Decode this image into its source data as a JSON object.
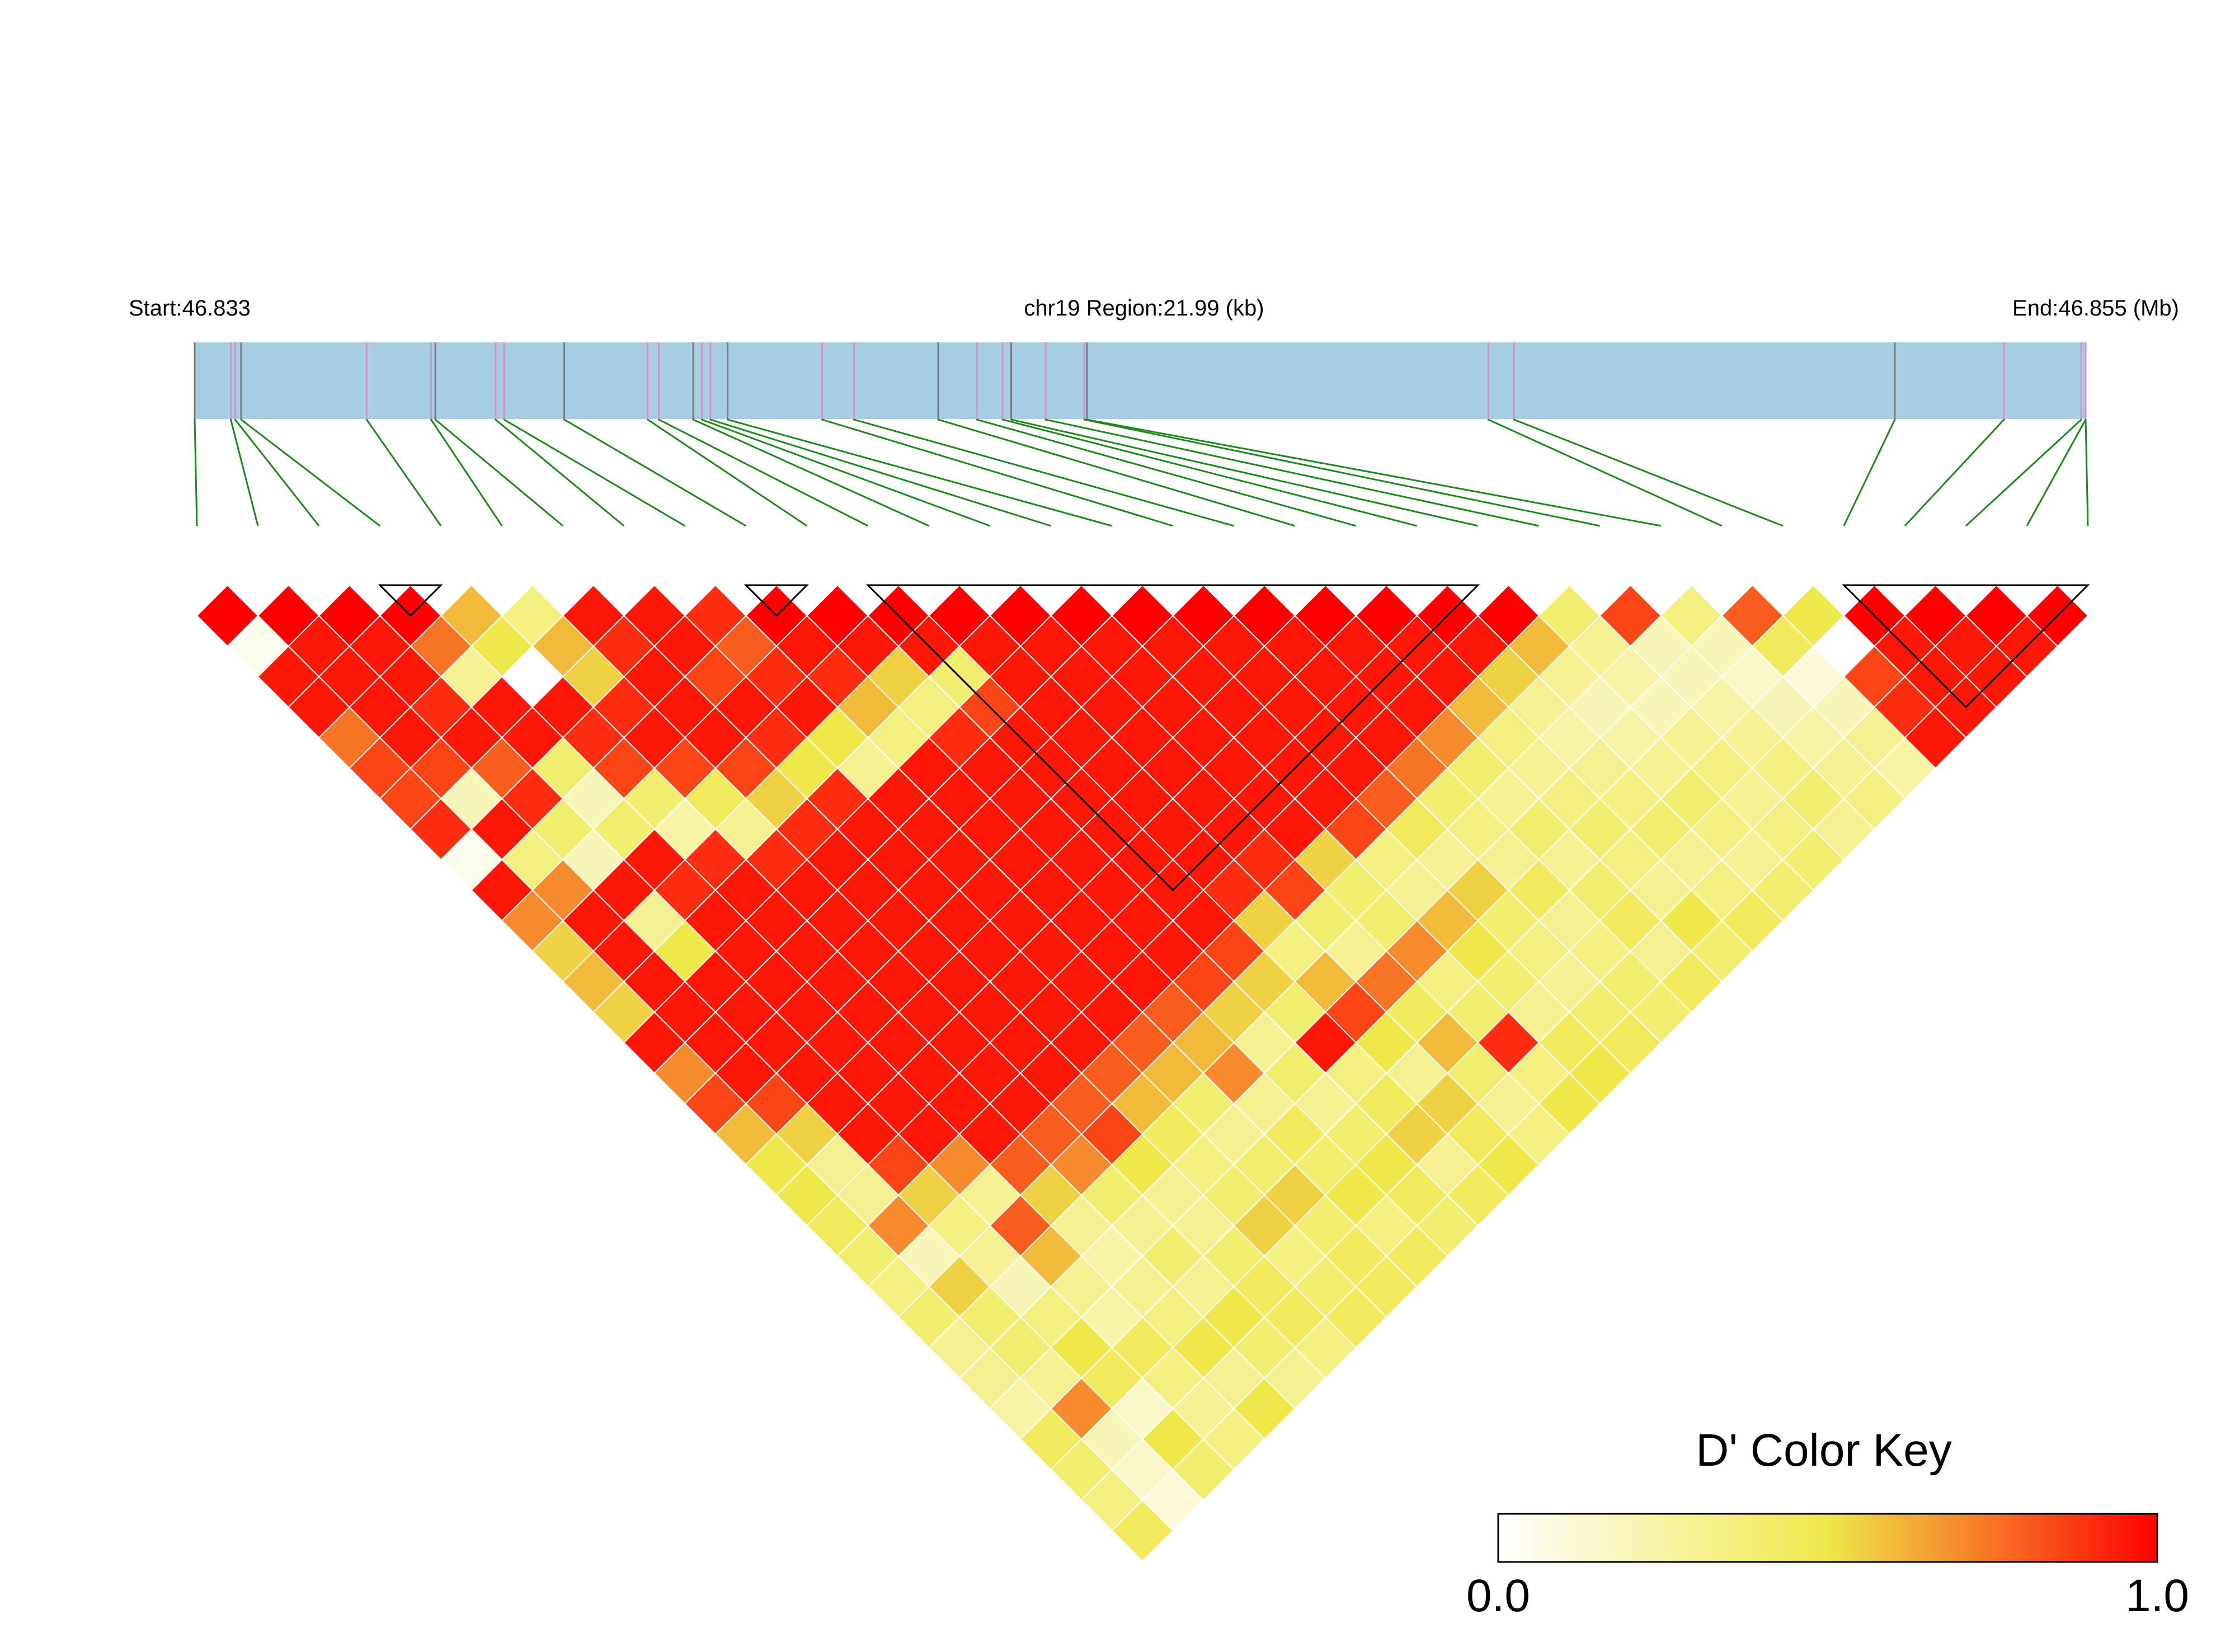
{
  "header": {
    "start_label": "Start:46.833",
    "region_label": "chr19 Region:21.99 (kb)",
    "end_label": "End:46.855 (Mb)"
  },
  "colors": {
    "region_bar": "#a6cde1",
    "snp_tick_gray": "#7a7a7a",
    "snp_tick_pink": "#d98ec8",
    "connector": "#1b8a1b",
    "block_outline": "#000000",
    "cell_border": "#ffffff",
    "scale_low": "#ffffff",
    "scale_mid": "#eee84a",
    "scale_high": "#ff0000"
  },
  "color_key": {
    "title": "D' Color Key",
    "min_label": "0.0",
    "max_label": "1.0"
  },
  "chart_data": {
    "type": "heatmap",
    "description_key": "pairwise D' between SNPs; pair (i,j) with i<j",
    "n_snps": 32,
    "region_start_mb": 46.833,
    "region_end_mb": 46.855,
    "snp_positions_mb": [
      46.833,
      46.83342,
      46.83347,
      46.83354,
      46.835,
      46.83575,
      46.8358,
      46.8365,
      46.8366,
      46.8373,
      46.83827,
      46.8384,
      46.8388,
      46.8389,
      46.839,
      46.8392,
      46.8403,
      46.84067,
      46.84165,
      46.8421,
      46.8424,
      46.8425,
      46.8429,
      46.84335,
      46.84338,
      46.84805,
      46.84835,
      46.85278,
      46.85405,
      46.85495,
      46.855,
      46.855
    ],
    "dprime_range": [
      0.0,
      1.0
    ],
    "ld_blocks": [
      [
        3,
        4
      ],
      [
        9,
        10
      ],
      [
        11,
        21
      ],
      [
        27,
        31
      ]
    ],
    "dprime_rows": [
      [
        1.0,
        0.05,
        0.95,
        0.95,
        0.75,
        0.85,
        0.85,
        0.9,
        0.05,
        0.95,
        0.7,
        0.55,
        0.6,
        0.55,
        0.95,
        0.7,
        0.85,
        0.6,
        0.5,
        0.5,
        0.45,
        0.4,
        0.35,
        0.4,
        0.3,
        0.3,
        0.25,
        0.45,
        0.4,
        0.35,
        0.45
      ],
      [
        1.0,
        0.95,
        0.95,
        0.95,
        0.95,
        0.85,
        0.2,
        0.95,
        0.35,
        0.7,
        0.95,
        0.95,
        0.95,
        0.95,
        0.95,
        0.95,
        0.85,
        0.55,
        0.3,
        0.3,
        0.7,
        0.2,
        0.55,
        0.4,
        0.4,
        0.3,
        0.7,
        0.2,
        0.15,
        0.1
      ],
      [
        1.0,
        0.95,
        0.95,
        0.9,
        0.95,
        0.8,
        0.9,
        0.4,
        0.2,
        0.95,
        0.3,
        0.5,
        0.95,
        0.95,
        0.95,
        0.95,
        0.95,
        0.95,
        0.85,
        0.55,
        0.35,
        0.3,
        0.2,
        0.35,
        0.5,
        0.45,
        0.15,
        0.5,
        0.4
      ],
      [
        1.0,
        0.75,
        0.3,
        0.95,
        0.95,
        0.4,
        0.2,
        0.4,
        0.95,
        0.9,
        0.95,
        0.95,
        0.95,
        0.95,
        0.95,
        0.95,
        0.95,
        0.95,
        0.7,
        0.3,
        0.8,
        0.6,
        0.3,
        0.25,
        0.45,
        0.35,
        0.3,
        0.35
      ],
      [
        0.6,
        0.5,
        0.0,
        0.95,
        0.9,
        0.85,
        0.4,
        0.25,
        0.9,
        0.95,
        0.95,
        0.95,
        0.95,
        0.95,
        0.95,
        0.95,
        0.95,
        0.95,
        0.8,
        0.55,
        0.3,
        0.25,
        0.3,
        0.35,
        0.5,
        0.3,
        0.5
      ],
      [
        0.35,
        0.6,
        0.55,
        0.9,
        0.95,
        0.85,
        0.45,
        0.3,
        0.9,
        0.95,
        0.95,
        0.95,
        0.95,
        0.95,
        0.95,
        0.95,
        0.95,
        0.8,
        0.7,
        0.4,
        0.3,
        0.4,
        0.3,
        0.5,
        0.4,
        0.3
      ],
      [
        0.95,
        0.9,
        0.95,
        0.95,
        0.95,
        0.85,
        0.55,
        0.9,
        0.95,
        0.95,
        0.95,
        0.95,
        0.95,
        0.95,
        0.95,
        0.95,
        0.8,
        0.85,
        0.5,
        0.3,
        0.3,
        0.4,
        0.45,
        0.45,
        0.35
      ],
      [
        0.95,
        0.95,
        0.85,
        0.95,
        0.9,
        0.5,
        0.9,
        0.95,
        0.95,
        0.95,
        0.95,
        0.95,
        0.95,
        0.95,
        0.95,
        0.8,
        0.6,
        0.45,
        0.35,
        0.4,
        0.55,
        0.35,
        0.4,
        0.45
      ],
      [
        0.9,
        0.8,
        0.9,
        0.95,
        0.5,
        0.3,
        0.95,
        0.95,
        0.95,
        0.95,
        0.95,
        0.95,
        0.95,
        0.95,
        0.8,
        0.6,
        0.4,
        0.3,
        0.4,
        0.55,
        0.4,
        0.45,
        0.45
      ],
      [
        1.0,
        0.95,
        0.9,
        0.6,
        0.35,
        0.95,
        0.95,
        0.95,
        0.95,
        0.95,
        0.95,
        0.95,
        0.95,
        0.8,
        0.6,
        0.7,
        0.3,
        0.45,
        0.4,
        0.5,
        0.35,
        0.45
      ],
      [
        1.0,
        0.95,
        0.55,
        0.35,
        0.9,
        0.95,
        0.95,
        0.95,
        0.95,
        0.95,
        0.95,
        0.95,
        0.85,
        0.55,
        0.3,
        0.4,
        0.3,
        0.4,
        0.5,
        0.45,
        0.4
      ],
      [
        1.0,
        0.95,
        0.4,
        0.85,
        0.95,
        0.95,
        0.95,
        0.95,
        0.95,
        0.95,
        0.95,
        0.85,
        0.55,
        0.4,
        0.95,
        0.35,
        0.45,
        0.55,
        0.3,
        0.45
      ],
      [
        1.0,
        0.95,
        0.95,
        0.95,
        0.95,
        0.95,
        0.95,
        0.95,
        0.95,
        0.9,
        0.55,
        0.35,
        0.6,
        0.85,
        0.5,
        0.3,
        0.55,
        0.45,
        0.5
      ],
      [
        1.0,
        0.95,
        0.95,
        0.95,
        0.95,
        0.95,
        0.95,
        0.95,
        0.9,
        0.85,
        0.4,
        0.3,
        0.75,
        0.45,
        0.6,
        0.4,
        0.3,
        0.35
      ],
      [
        1.0,
        0.95,
        0.95,
        0.95,
        0.95,
        0.95,
        0.95,
        0.95,
        0.55,
        0.4,
        0.4,
        0.7,
        0.35,
        0.4,
        0.9,
        0.35,
        0.5
      ],
      [
        1.0,
        0.95,
        0.95,
        0.95,
        0.95,
        0.95,
        0.95,
        0.85,
        0.35,
        0.3,
        0.6,
        0.5,
        0.4,
        0.3,
        0.45,
        0.5
      ],
      [
        1.0,
        0.95,
        0.95,
        0.95,
        0.95,
        0.95,
        0.8,
        0.45,
        0.3,
        0.55,
        0.4,
        0.35,
        0.3,
        0.4,
        0.45
      ],
      [
        1.0,
        0.95,
        0.95,
        0.95,
        0.95,
        0.75,
        0.4,
        0.35,
        0.3,
        0.45,
        0.3,
        0.35,
        0.4,
        0.4
      ],
      [
        1.0,
        0.95,
        0.95,
        0.95,
        0.7,
        0.4,
        0.3,
        0.4,
        0.3,
        0.4,
        0.45,
        0.3,
        0.45
      ],
      [
        1.0,
        0.95,
        0.95,
        0.6,
        0.35,
        0.3,
        0.35,
        0.4,
        0.35,
        0.3,
        0.5,
        0.4
      ],
      [
        1.0,
        0.95,
        0.55,
        0.3,
        0.25,
        0.3,
        0.35,
        0.4,
        0.3,
        0.35,
        0.45
      ],
      [
        1.0,
        0.6,
        0.3,
        0.2,
        0.25,
        0.3,
        0.4,
        0.35,
        0.3,
        0.4
      ],
      [
        0.4,
        0.3,
        0.25,
        0.2,
        0.3,
        0.35,
        0.3,
        0.35,
        0.4
      ],
      [
        0.85,
        0.2,
        0.2,
        0.25,
        0.3,
        0.35,
        0.4,
        0.3
      ],
      [
        0.35,
        0.2,
        0.15,
        0.2,
        0.25,
        0.3,
        0.35
      ],
      [
        0.8,
        0.45,
        0.1,
        0.2,
        0.3,
        0.25
      ],
      [
        0.5,
        0.0,
        0.85,
        0.9,
        0.95
      ],
      [
        1.0,
        0.95,
        0.95,
        0.95
      ],
      [
        1.0,
        0.95,
        0.95
      ],
      [
        1.0,
        0.95
      ],
      [
        1.0
      ]
    ]
  }
}
